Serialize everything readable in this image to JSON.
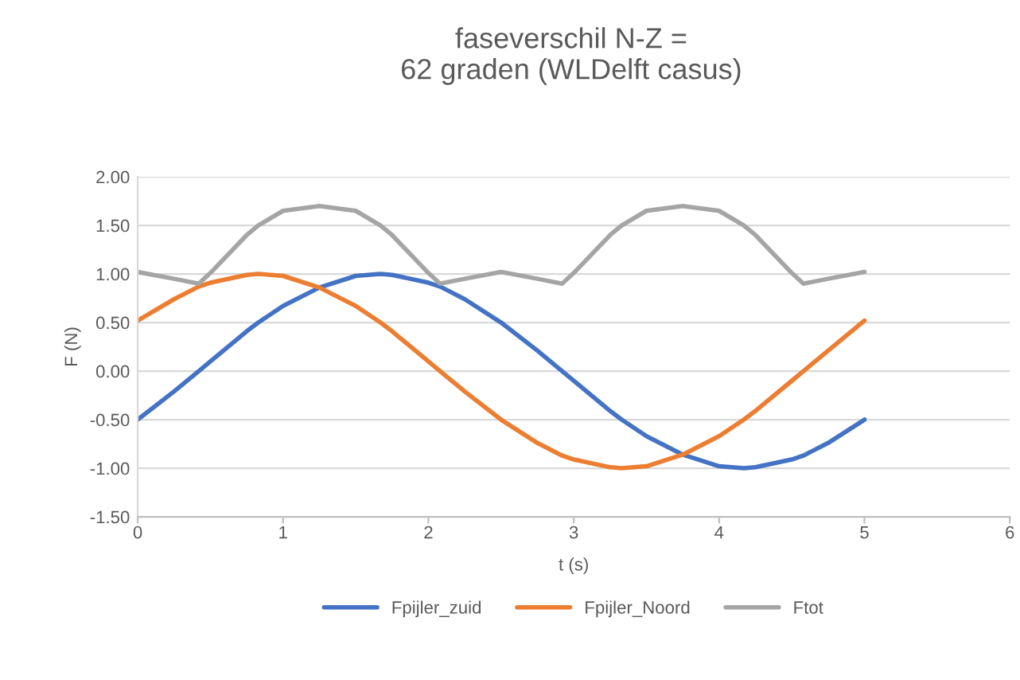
{
  "chart_data": {
    "type": "line",
    "title": "faseverschil N-Z =\n62 graden (WLDelft casus)",
    "xlabel": "t (s)",
    "ylabel": "F (N)",
    "x": [
      0,
      0.25,
      0.42,
      0.5,
      0.75,
      0.83,
      1,
      1.25,
      1.5,
      1.67,
      1.75,
      2,
      2.08,
      2.25,
      2.5,
      2.75,
      2.92,
      3,
      3.25,
      3.33,
      3.5,
      3.75,
      4,
      4.17,
      4.25,
      4.5,
      4.58,
      4.75,
      5
    ],
    "series": [
      {
        "name": "Fpijler_zuid",
        "color": "#4472c4",
        "values": [
          -0.5,
          -0.21,
          0,
          0.1,
          0.41,
          0.5,
          0.67,
          0.86,
          0.98,
          1,
          0.99,
          0.91,
          0.87,
          0.74,
          0.5,
          0.21,
          0,
          -0.1,
          -0.41,
          -0.5,
          -0.67,
          -0.86,
          -0.98,
          -1,
          -0.99,
          -0.91,
          -0.87,
          -0.74,
          -0.5
        ]
      },
      {
        "name": "Fpijler_Noord",
        "color": "#ed7d31",
        "values": [
          0.52,
          0.74,
          0.87,
          0.91,
          0.99,
          1,
          0.98,
          0.86,
          0.67,
          0.5,
          0.41,
          0.1,
          0,
          -0.21,
          -0.5,
          -0.74,
          -0.87,
          -0.91,
          -0.99,
          -1,
          -0.98,
          -0.86,
          -0.67,
          -0.5,
          -0.41,
          -0.1,
          0,
          0.21,
          0.52
        ]
      },
      {
        "name": "Ftot",
        "color": "#a5a5a5",
        "values": [
          1.02,
          0.95,
          0.9,
          1.01,
          1.4,
          1.5,
          1.65,
          1.7,
          1.65,
          1.5,
          1.4,
          1.01,
          0.9,
          0.95,
          1.02,
          0.95,
          0.9,
          1.01,
          1.4,
          1.5,
          1.65,
          1.7,
          1.65,
          1.5,
          1.4,
          1.01,
          0.9,
          0.95,
          1.02
        ]
      }
    ],
    "xlim": [
      0,
      6
    ],
    "xticks": [
      0,
      1,
      2,
      3,
      4,
      5,
      6
    ],
    "ylim": [
      -1.5,
      2.0
    ],
    "yticks": [
      {
        "value": -1.5,
        "label": "-1.50"
      },
      {
        "value": -1.0,
        "label": "-1.00"
      },
      {
        "value": -0.5,
        "label": "-0.50"
      },
      {
        "value": 0,
        "label": "0.00"
      },
      {
        "value": 0.5,
        "label": "0.50"
      },
      {
        "value": 1.0,
        "label": "1.00"
      },
      {
        "value": 1.5,
        "label": "1.50"
      },
      {
        "value": 2.0,
        "label": "2.00"
      }
    ],
    "grid": "y",
    "legend": "bottom",
    "marker": "none",
    "line_style": "solid"
  }
}
